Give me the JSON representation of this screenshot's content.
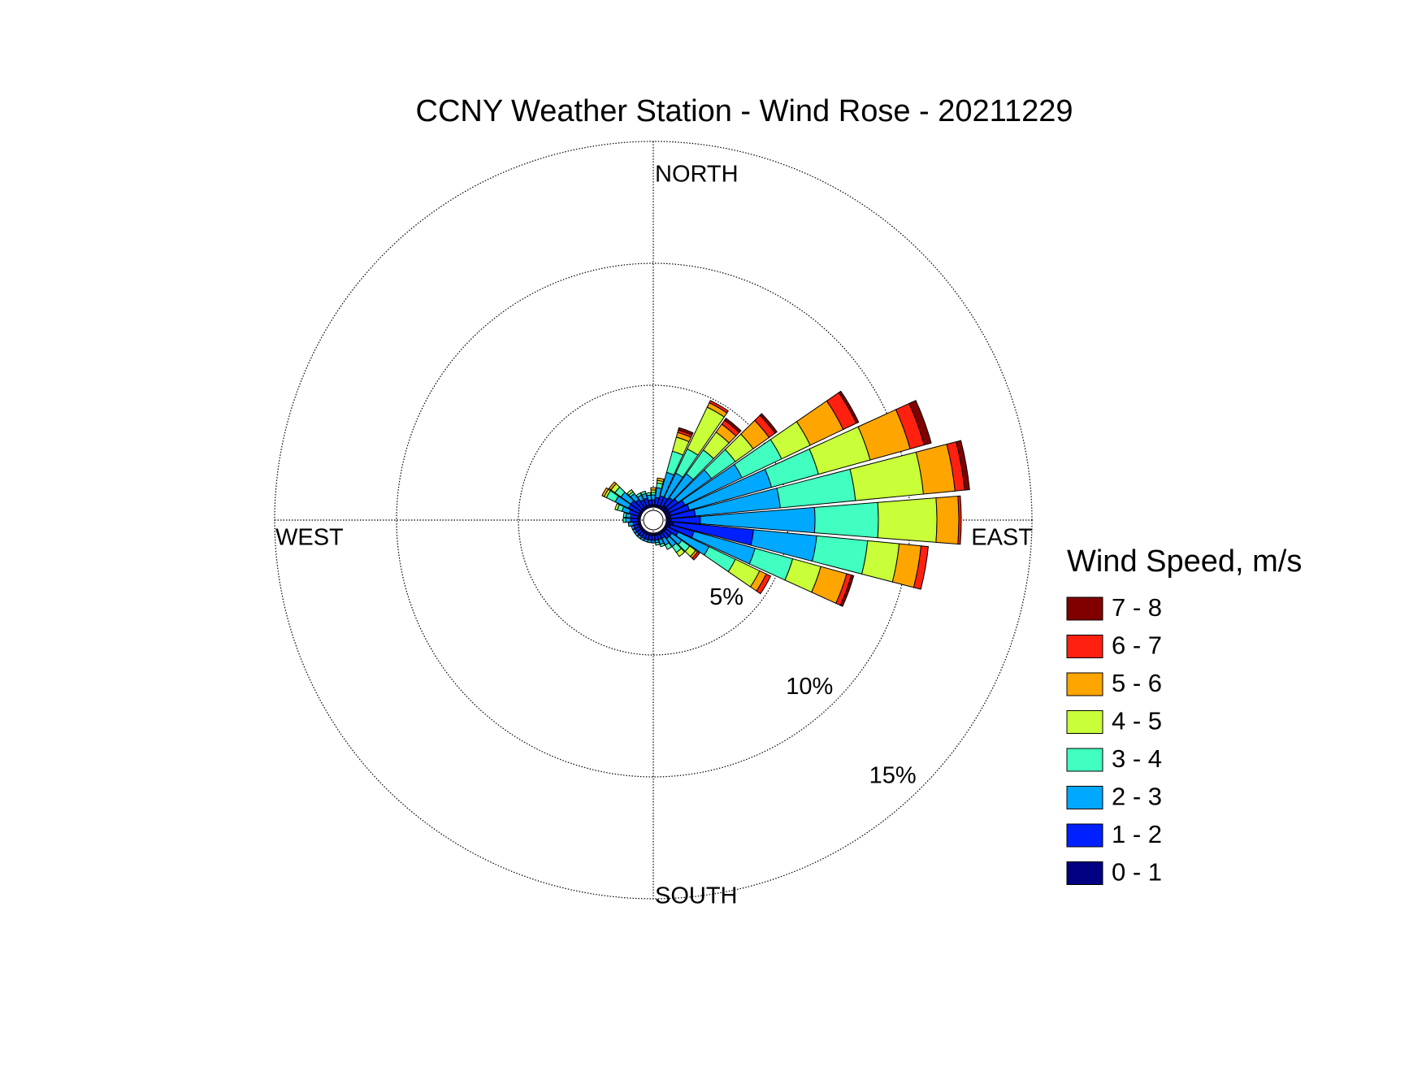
{
  "chart_data": {
    "type": "windrose",
    "title": "CCNY Weather Station - Wind Rose - 20211229",
    "legend_title": "Wind Speed, m/s",
    "compass_labels": {
      "north": "NORTH",
      "east": "EAST",
      "south": "SOUTH",
      "west": "WEST"
    },
    "x": [
      0,
      10,
      20,
      30,
      40,
      50,
      60,
      70,
      80,
      90,
      100,
      110,
      120,
      130,
      140,
      150,
      160,
      170,
      180,
      190,
      200,
      210,
      220,
      230,
      240,
      250,
      260,
      270,
      280,
      290,
      300,
      310,
      320,
      330,
      340,
      350
    ],
    "rlim": [
      0,
      15
    ],
    "rticks": [
      {
        "value": 5,
        "label": "5%"
      },
      {
        "value": 10,
        "label": "10%"
      },
      {
        "value": 15,
        "label": "15%"
      }
    ],
    "grid": true,
    "series": [
      {
        "name": "0 - 1",
        "color": "#000080",
        "values": [
          0.1,
          0.1,
          0.1,
          0.1,
          0.2,
          0.2,
          0.2,
          0.2,
          0.2,
          0.2,
          0.3,
          0.2,
          0.1,
          0.1,
          0.1,
          0.1,
          0.1,
          0.1,
          0.1,
          0.1,
          0.1,
          0.1,
          0.1,
          0.1,
          0.1,
          0.1,
          0.1,
          0.1,
          0.1,
          0.1,
          0.1,
          0.1,
          0.1,
          0.1,
          0.1,
          0.1
        ]
      },
      {
        "name": "1 - 2",
        "color": "#0020ff",
        "values": [
          0.2,
          0.3,
          0.4,
          0.4,
          0.4,
          0.5,
          0.7,
          0.8,
          1.0,
          1.2,
          3.3,
          1.0,
          0.5,
          0.3,
          0.3,
          0.2,
          0.2,
          0.2,
          0.2,
          0.2,
          0.2,
          0.2,
          0.2,
          0.2,
          0.2,
          0.2,
          0.2,
          0.3,
          0.3,
          0.4,
          0.5,
          0.5,
          0.4,
          0.3,
          0.3,
          0.2
        ]
      },
      {
        "name": "2 - 3",
        "color": "#00a8ff",
        "values": [
          0.2,
          0.4,
          1.0,
          1.1,
          1.2,
          1.7,
          2.6,
          3.5,
          3.5,
          4.7,
          2.6,
          2.6,
          1.4,
          0.5,
          0.4,
          0.3,
          0.2,
          0.1,
          0.1,
          0.1,
          0.1,
          0.1,
          0.1,
          0.1,
          0.1,
          0.1,
          0.2,
          0.2,
          0.2,
          0.3,
          0.6,
          0.5,
          0.3,
          0.2,
          0.2,
          0.2
        ]
      },
      {
        "name": "3 - 4",
        "color": "#40ffc0",
        "values": [
          0.1,
          0.2,
          0.9,
          1.1,
          1.2,
          1.2,
          1.8,
          2.0,
          3.1,
          2.6,
          2.1,
          1.6,
          1.2,
          0.4,
          0.3,
          0.2,
          0.1,
          0.1,
          0,
          0,
          0,
          0,
          0,
          0,
          0,
          0,
          0,
          0.1,
          0.1,
          0.2,
          0.4,
          0.3,
          0.1,
          0.1,
          0.1,
          0.1
        ]
      },
      {
        "name": "4 - 5",
        "color": "#c8ff38",
        "values": [
          0.1,
          0.1,
          0.6,
          1.9,
          0.9,
          0.9,
          1.3,
          2.2,
          2.8,
          2.4,
          1.3,
          1.2,
          1.1,
          0.3,
          0.2,
          0,
          0,
          0,
          0,
          0,
          0,
          0,
          0,
          0,
          0,
          0,
          0,
          0,
          0,
          0.1,
          0.1,
          0.2,
          0.1,
          0,
          0,
          0
        ]
      },
      {
        "name": "5 - 6",
        "color": "#ffa500",
        "values": [
          0.1,
          0.1,
          0.2,
          0.2,
          0.4,
          0.8,
          1.5,
          1.7,
          1.3,
          0.9,
          0.9,
          1.1,
          0.3,
          0.1,
          0,
          0,
          0,
          0,
          0,
          0,
          0,
          0,
          0,
          0,
          0,
          0,
          0,
          0,
          0,
          0,
          0.1,
          0.1,
          0,
          0,
          0,
          0
        ]
      },
      {
        "name": "6 - 7",
        "color": "#ff2010",
        "values": [
          0,
          0,
          0.1,
          0.1,
          0.2,
          0.3,
          0.6,
          0.6,
          0.4,
          0.1,
          0.3,
          0.2,
          0.2,
          0.1,
          0,
          0,
          0,
          0,
          0,
          0,
          0,
          0,
          0,
          0,
          0,
          0,
          0,
          0,
          0,
          0,
          0,
          0,
          0,
          0,
          0,
          0
        ]
      },
      {
        "name": "7 - 8",
        "color": "#800000",
        "values": [
          0,
          0,
          0.1,
          0,
          0.1,
          0.1,
          0.1,
          0.3,
          0.2,
          0,
          0,
          0.1,
          0,
          0,
          0,
          0,
          0,
          0,
          0,
          0,
          0,
          0,
          0,
          0,
          0,
          0,
          0,
          0,
          0,
          0,
          0,
          0,
          0,
          0,
          0,
          0
        ]
      }
    ]
  }
}
